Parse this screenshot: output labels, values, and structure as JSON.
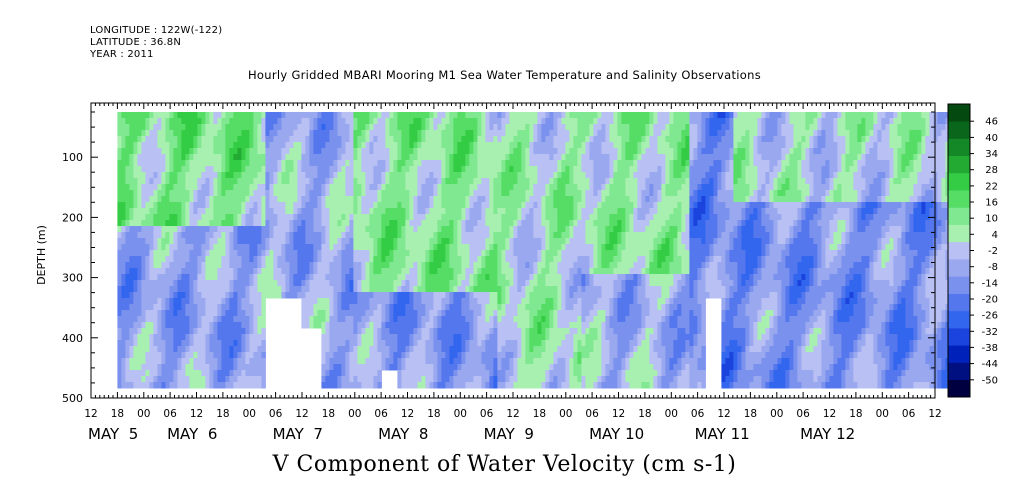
{
  "header": {
    "longitude": "LONGITUDE : 122W(-122)",
    "latitude": "LATITUDE : 36.8N",
    "year": "YEAR : 2011"
  },
  "chart_data": {
    "type": "heatmap",
    "title": "Hourly Gridded MBARI Mooring M1 Sea Water Temperature and Salinity Observations",
    "bottom_title": "V Component of Water Velocity (cm s-1)",
    "ylabel": "DEPTH (m)",
    "y_ticks": [
      100,
      200,
      300,
      400,
      500
    ],
    "ylim": [
      500,
      10
    ],
    "x_hour_ticks": [
      "12",
      "18",
      "00",
      "06",
      "12",
      "18",
      "00",
      "06",
      "12",
      "18",
      "00",
      "06",
      "12",
      "18",
      "00",
      "06",
      "12",
      "18",
      "00",
      "06",
      "12",
      "18",
      "00",
      "06",
      "12",
      "18",
      "00",
      "06",
      "12",
      "18",
      "00",
      "06",
      "12"
    ],
    "x_day_labels": [
      "MAY  5",
      "MAY  6",
      "MAY  7",
      "MAY  8",
      "MAY  9",
      "MAY 10",
      "MAY 11",
      "MAY 12"
    ],
    "x_day_label_offsets_hours": [
      0,
      18,
      42,
      66,
      90,
      114,
      138,
      162
    ],
    "colorbar": {
      "levels": [
        -50,
        -44,
        -38,
        -32,
        -26,
        -20,
        -14,
        -8,
        -2,
        4,
        10,
        16,
        22,
        28,
        34,
        40,
        46
      ],
      "labels": [
        "46",
        "40",
        "34",
        "28",
        "22",
        "16",
        "10",
        "4",
        "-2",
        "-8",
        "-14",
        "-20",
        "-26",
        "-32",
        "-38",
        "-44",
        "-50"
      ],
      "colors": [
        "#000040",
        "#001080",
        "#0022bb",
        "#1a44dd",
        "#3366ee",
        "#5577ee",
        "#7a92ee",
        "#9aa8f0",
        "#b8c0f4",
        "#a8f0b0",
        "#80e890",
        "#55dd66",
        "#33cc44",
        "#22aa33",
        "#148826",
        "#0a661a",
        "#044a10"
      ]
    },
    "data_start_hour": 6,
    "data_end_hour": 198,
    "data_depth_range": [
      25,
      485
    ],
    "regions": [
      {
        "from_hour": 6,
        "to_hour": 40,
        "depth_from": 25,
        "depth_to": 220,
        "v": 12
      },
      {
        "from_hour": 6,
        "to_hour": 40,
        "depth_from": 220,
        "depth_to": 485,
        "v": -6
      },
      {
        "from_hour": 40,
        "to_hour": 60,
        "depth_from": 25,
        "depth_to": 485,
        "v": -4
      },
      {
        "from_hour": 60,
        "to_hour": 92,
        "depth_from": 25,
        "depth_to": 330,
        "v": 10
      },
      {
        "from_hour": 60,
        "to_hour": 92,
        "depth_from": 330,
        "depth_to": 485,
        "v": -8
      },
      {
        "from_hour": 92,
        "to_hour": 112,
        "depth_from": 25,
        "depth_to": 485,
        "v": 6
      },
      {
        "from_hour": 112,
        "to_hour": 136,
        "depth_from": 25,
        "depth_to": 300,
        "v": 8
      },
      {
        "from_hour": 112,
        "to_hour": 136,
        "depth_from": 300,
        "depth_to": 485,
        "v": -3
      },
      {
        "from_hour": 136,
        "to_hour": 146,
        "depth_from": 25,
        "depth_to": 485,
        "v": -12
      },
      {
        "from_hour": 146,
        "to_hour": 198,
        "depth_from": 25,
        "depth_to": 180,
        "v": 4
      },
      {
        "from_hour": 146,
        "to_hour": 198,
        "depth_from": 180,
        "depth_to": 485,
        "v": -10
      }
    ],
    "missing_data_notches": [
      {
        "from_hour": 40,
        "to_hour": 48,
        "depth_from": 340,
        "depth_to": 485
      },
      {
        "from_hour": 48,
        "to_hour": 52,
        "depth_from": 390,
        "depth_to": 485
      },
      {
        "from_hour": 66,
        "to_hour": 70,
        "depth_from": 460,
        "depth_to": 485
      },
      {
        "from_hour": 140,
        "to_hour": 143,
        "depth_from": 340,
        "depth_to": 485
      }
    ]
  }
}
